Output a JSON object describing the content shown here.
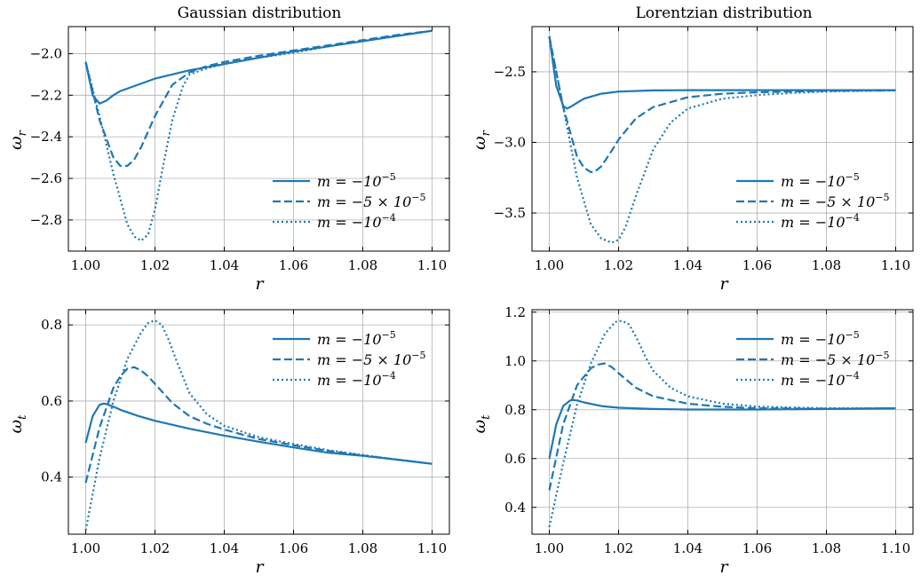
{
  "figure": {
    "line_color": "#1f77b4",
    "grid": true,
    "legend_labels": [
      "m = −10",
      "m = −5 × 10",
      "m = −10"
    ],
    "legend_exponents": [
      "−5",
      "−5",
      "−4"
    ]
  },
  "chart_data": [
    {
      "type": "line",
      "title": "Gaussian distribution",
      "xlabel": "r",
      "ylabel": "ω",
      "ylabel_sub": "r",
      "xlim": [
        0.995,
        1.105
      ],
      "ylim": [
        -2.95,
        -1.87
      ],
      "xticks": [
        1.0,
        1.02,
        1.04,
        1.06,
        1.08,
        1.1
      ],
      "xtick_labels": [
        "1.00",
        "1.02",
        "1.04",
        "1.06",
        "1.08",
        "1.10"
      ],
      "yticks": [
        -2.0,
        -2.2,
        -2.4,
        -2.6,
        -2.8
      ],
      "ytick_labels": [
        "−2.0",
        "−2.2",
        "−2.4",
        "−2.6",
        "−2.8"
      ],
      "legend": "lower-right",
      "series": [
        {
          "style": "solid",
          "x": [
            1.0,
            1.002,
            1.004,
            1.006,
            1.008,
            1.01,
            1.015,
            1.02,
            1.03,
            1.04,
            1.05,
            1.06,
            1.07,
            1.08,
            1.09,
            1.1
          ],
          "y": [
            -2.04,
            -2.2,
            -2.24,
            -2.225,
            -2.2,
            -2.18,
            -2.15,
            -2.12,
            -2.08,
            -2.05,
            -2.02,
            -1.99,
            -1.965,
            -1.94,
            -1.915,
            -1.89
          ]
        },
        {
          "style": "dashed",
          "x": [
            1.0,
            1.004,
            1.008,
            1.01,
            1.012,
            1.014,
            1.016,
            1.02,
            1.025,
            1.03,
            1.035,
            1.04,
            1.05,
            1.06,
            1.07,
            1.08,
            1.09,
            1.1
          ],
          "y": [
            -2.04,
            -2.32,
            -2.5,
            -2.54,
            -2.54,
            -2.51,
            -2.45,
            -2.3,
            -2.15,
            -2.09,
            -2.06,
            -2.04,
            -2.01,
            -1.985,
            -1.96,
            -1.935,
            -1.91,
            -1.89
          ]
        },
        {
          "style": "dotted",
          "x": [
            1.0,
            1.004,
            1.008,
            1.012,
            1.014,
            1.016,
            1.018,
            1.02,
            1.022,
            1.025,
            1.028,
            1.03,
            1.035,
            1.04,
            1.05,
            1.06,
            1.07,
            1.08,
            1.09,
            1.1
          ],
          "y": [
            -2.04,
            -2.3,
            -2.58,
            -2.82,
            -2.88,
            -2.9,
            -2.87,
            -2.75,
            -2.57,
            -2.32,
            -2.16,
            -2.1,
            -2.07,
            -2.05,
            -2.02,
            -1.995,
            -1.965,
            -1.94,
            -1.915,
            -1.89
          ]
        }
      ]
    },
    {
      "type": "line",
      "title": "Lorentzian distribution",
      "xlabel": "r",
      "ylabel": "ω",
      "ylabel_sub": "r",
      "xlim": [
        0.995,
        1.105
      ],
      "ylim": [
        -3.77,
        -2.18
      ],
      "xticks": [
        1.0,
        1.02,
        1.04,
        1.06,
        1.08,
        1.1
      ],
      "xtick_labels": [
        "1.00",
        "1.02",
        "1.04",
        "1.06",
        "1.08",
        "1.10"
      ],
      "yticks": [
        -2.5,
        -3.0,
        -3.5
      ],
      "ytick_labels": [
        "−2.5",
        "−3.0",
        "−3.5"
      ],
      "legend": "lower-right",
      "series": [
        {
          "style": "solid",
          "x": [
            1.0,
            1.002,
            1.004,
            1.005,
            1.006,
            1.008,
            1.01,
            1.015,
            1.02,
            1.03,
            1.04,
            1.06,
            1.08,
            1.1
          ],
          "y": [
            -2.25,
            -2.6,
            -2.74,
            -2.76,
            -2.75,
            -2.72,
            -2.69,
            -2.655,
            -2.64,
            -2.632,
            -2.63,
            -2.63,
            -2.63,
            -2.63
          ]
        },
        {
          "style": "dashed",
          "x": [
            1.0,
            1.004,
            1.008,
            1.01,
            1.012,
            1.013,
            1.015,
            1.018,
            1.02,
            1.025,
            1.03,
            1.04,
            1.05,
            1.06,
            1.08,
            1.1
          ],
          "y": [
            -2.25,
            -2.75,
            -3.1,
            -3.18,
            -3.21,
            -3.21,
            -3.17,
            -3.06,
            -2.98,
            -2.83,
            -2.75,
            -2.68,
            -2.655,
            -2.645,
            -2.635,
            -2.632
          ]
        },
        {
          "style": "dotted",
          "x": [
            1.0,
            1.004,
            1.008,
            1.012,
            1.015,
            1.018,
            1.02,
            1.022,
            1.025,
            1.03,
            1.035,
            1.04,
            1.05,
            1.06,
            1.07,
            1.08,
            1.09,
            1.1
          ],
          "y": [
            -2.25,
            -2.75,
            -3.25,
            -3.58,
            -3.68,
            -3.71,
            -3.69,
            -3.6,
            -3.38,
            -3.05,
            -2.86,
            -2.76,
            -2.69,
            -2.665,
            -2.65,
            -2.64,
            -2.635,
            -2.632
          ]
        }
      ]
    },
    {
      "type": "line",
      "title": "",
      "xlabel": "r",
      "ylabel": "ω",
      "ylabel_sub": "t",
      "xlim": [
        0.995,
        1.105
      ],
      "ylim": [
        0.25,
        0.84
      ],
      "xticks": [
        1.0,
        1.02,
        1.04,
        1.06,
        1.08,
        1.1
      ],
      "xtick_labels": [
        "1.00",
        "1.02",
        "1.04",
        "1.06",
        "1.08",
        "1.10"
      ],
      "yticks": [
        0.4,
        0.6,
        0.8
      ],
      "ytick_labels": [
        "0.4",
        "0.6",
        "0.8"
      ],
      "legend": "upper-right",
      "series": [
        {
          "style": "solid",
          "x": [
            1.0,
            1.002,
            1.004,
            1.005,
            1.006,
            1.008,
            1.01,
            1.015,
            1.02,
            1.03,
            1.04,
            1.05,
            1.06,
            1.07,
            1.08,
            1.09,
            1.1
          ],
          "y": [
            0.49,
            0.56,
            0.59,
            0.593,
            0.592,
            0.585,
            0.577,
            0.561,
            0.548,
            0.527,
            0.509,
            0.493,
            0.478,
            0.464,
            0.456,
            0.446,
            0.435
          ]
        },
        {
          "style": "dashed",
          "x": [
            1.0,
            1.004,
            1.008,
            1.01,
            1.012,
            1.014,
            1.016,
            1.018,
            1.02,
            1.025,
            1.03,
            1.035,
            1.04,
            1.05,
            1.06,
            1.07,
            1.08,
            1.09,
            1.1
          ],
          "y": [
            0.385,
            0.53,
            0.635,
            0.665,
            0.685,
            0.689,
            0.68,
            0.665,
            0.645,
            0.595,
            0.56,
            0.54,
            0.525,
            0.5,
            0.484,
            0.469,
            0.457,
            0.446,
            0.435
          ]
        },
        {
          "style": "dotted",
          "x": [
            1.0,
            1.004,
            1.008,
            1.012,
            1.016,
            1.018,
            1.02,
            1.022,
            1.024,
            1.026,
            1.03,
            1.035,
            1.04,
            1.05,
            1.06,
            1.07,
            1.08,
            1.09,
            1.1
          ],
          "y": [
            0.26,
            0.45,
            0.6,
            0.71,
            0.78,
            0.805,
            0.812,
            0.8,
            0.76,
            0.71,
            0.62,
            0.565,
            0.535,
            0.505,
            0.487,
            0.471,
            0.458,
            0.446,
            0.435
          ]
        }
      ]
    },
    {
      "type": "line",
      "title": "",
      "xlabel": "r",
      "ylabel": "ω",
      "ylabel_sub": "t",
      "xlim": [
        0.995,
        1.105
      ],
      "ylim": [
        0.29,
        1.21
      ],
      "xticks": [
        1.0,
        1.02,
        1.04,
        1.06,
        1.08,
        1.1
      ],
      "xtick_labels": [
        "1.00",
        "1.02",
        "1.04",
        "1.06",
        "1.08",
        "1.10"
      ],
      "yticks": [
        0.4,
        0.6,
        0.8,
        1.0,
        1.2
      ],
      "ytick_labels": [
        "0.4",
        "0.6",
        "0.8",
        "1.0",
        "1.2"
      ],
      "legend": "upper-right",
      "series": [
        {
          "style": "solid",
          "x": [
            1.0,
            1.002,
            1.004,
            1.006,
            1.007,
            1.008,
            1.01,
            1.015,
            1.02,
            1.03,
            1.04,
            1.06,
            1.08,
            1.1
          ],
          "y": [
            0.6,
            0.74,
            0.815,
            0.838,
            0.84,
            0.838,
            0.83,
            0.815,
            0.808,
            0.803,
            0.801,
            0.801,
            0.803,
            0.806
          ]
        },
        {
          "style": "dashed",
          "x": [
            1.0,
            1.004,
            1.008,
            1.012,
            1.014,
            1.016,
            1.018,
            1.02,
            1.025,
            1.03,
            1.04,
            1.05,
            1.06,
            1.08,
            1.1
          ],
          "y": [
            0.47,
            0.74,
            0.9,
            0.97,
            0.985,
            0.99,
            0.975,
            0.95,
            0.89,
            0.855,
            0.825,
            0.812,
            0.806,
            0.804,
            0.806
          ]
        },
        {
          "style": "dotted",
          "x": [
            1.0,
            1.004,
            1.008,
            1.012,
            1.016,
            1.019,
            1.021,
            1.023,
            1.025,
            1.028,
            1.03,
            1.035,
            1.04,
            1.05,
            1.06,
            1.08,
            1.1
          ],
          "y": [
            0.32,
            0.58,
            0.82,
            0.99,
            1.11,
            1.16,
            1.165,
            1.15,
            1.1,
            1.01,
            0.96,
            0.89,
            0.855,
            0.825,
            0.813,
            0.806,
            0.806
          ]
        }
      ]
    }
  ]
}
